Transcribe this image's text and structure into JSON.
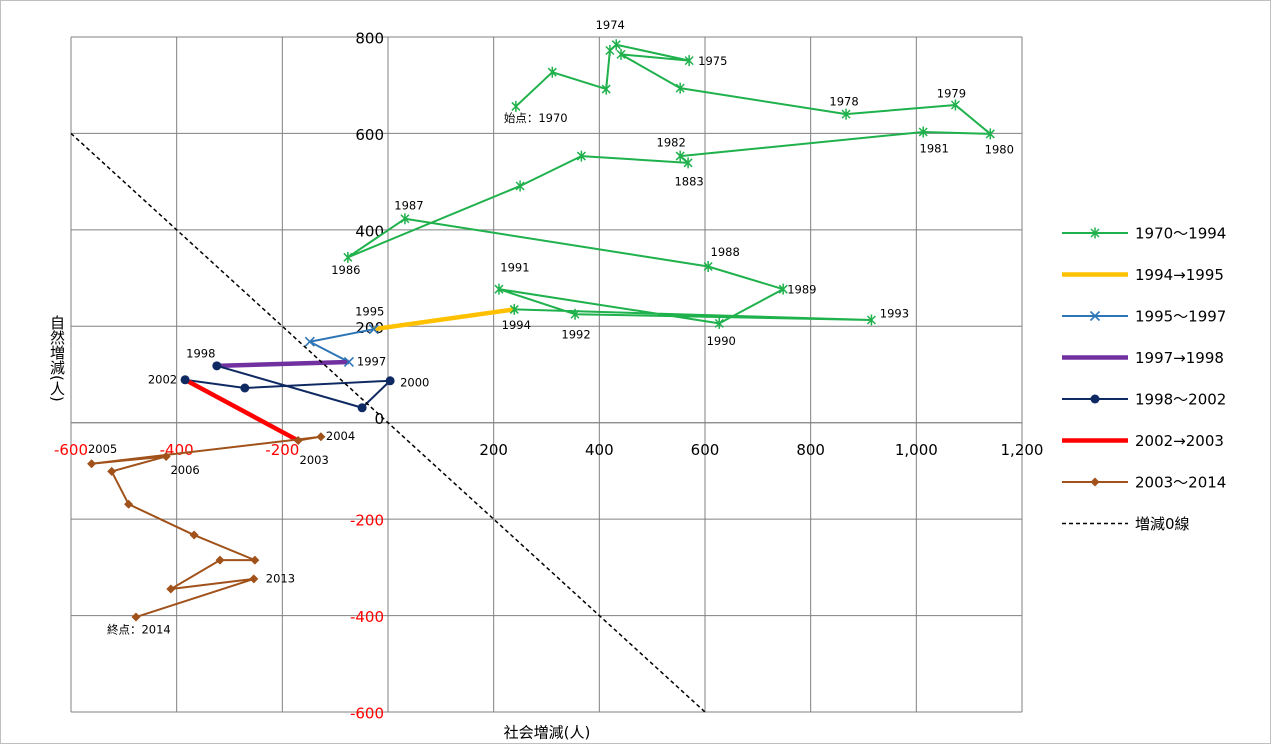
{
  "chart_data": {
    "type": "scatter-line",
    "x_label": "社会増減(人)",
    "y_label": "自然増減(人)",
    "xlim": [
      -600,
      1200
    ],
    "ylim": [
      -600,
      800
    ],
    "xticks": [
      -600,
      -400,
      -200,
      200,
      400,
      600,
      800,
      {
        "value": 1000,
        "label": "1,000"
      },
      {
        "value": 1200,
        "label": "1,200"
      }
    ],
    "yticks": [
      -600,
      -400,
      -200,
      0,
      200,
      400,
      600,
      800
    ],
    "negative_tick_color": "#ff0000",
    "grid": true,
    "legend": "right",
    "series": [
      {
        "name": "1970〜1994",
        "color": "#1fb14c",
        "marker": "star",
        "width": 2,
        "x": [
          242,
          311,
          413,
          420,
          432,
          570,
          441,
          553,
          867,
          1074,
          1140,
          1013,
          553,
          568,
          366,
          250,
          -76,
          32,
          606,
          748,
          627,
          210,
          354,
          915,
          239
        ],
        "values": [
          656,
          727,
          692,
          772,
          784,
          751,
          764,
          694,
          640,
          659,
          599,
          603,
          553,
          539,
          553,
          491,
          343,
          423,
          324,
          277,
          206,
          277,
          225,
          213,
          235
        ],
        "labels": [
          "始点：1970",
          null,
          null,
          null,
          "1974",
          "1975",
          null,
          null,
          "1978",
          "1979",
          "1980",
          "1981",
          "1982",
          "1883",
          null,
          null,
          "1986",
          "1987",
          "1988",
          "1989",
          "1990",
          "1991",
          "1992",
          "1993",
          "1994"
        ]
      },
      {
        "name": "1994→1995",
        "color": "#ffc000",
        "marker": "none",
        "width": 4.5,
        "x": [
          239,
          -27
        ],
        "values": [
          235,
          194
        ]
      },
      {
        "name": "1995〜1997",
        "color": "#2e75b6",
        "marker": "x",
        "width": 2,
        "x": [
          -27,
          -148,
          -74
        ],
        "values": [
          194,
          168,
          126
        ],
        "labels": [
          "1995",
          null,
          "1997"
        ]
      },
      {
        "name": "1997→1998",
        "color": "#7030a0",
        "marker": "none",
        "width": 4.5,
        "x": [
          -74,
          -324
        ],
        "values": [
          126,
          118
        ]
      },
      {
        "name": "1998〜2002",
        "color": "#0f2a63",
        "marker": "circle",
        "width": 2,
        "x": [
          -324,
          -49,
          4,
          -271,
          -384
        ],
        "values": [
          118,
          31,
          87,
          72,
          89
        ],
        "labels": [
          "1998",
          null,
          "2000",
          null,
          "2002"
        ]
      },
      {
        "name": "2002→2003",
        "color": "#ff0000",
        "marker": "none",
        "width": 4.5,
        "x": [
          -384,
          -170
        ],
        "values": [
          89,
          -37
        ]
      },
      {
        "name": "2003〜2014",
        "color": "#a0521a",
        "marker": "diamond",
        "width": 2,
        "x": [
          -170,
          -127,
          -561,
          -420,
          -523,
          -491,
          -367,
          -252,
          -318,
          -411,
          -254,
          -477
        ],
        "values": [
          -37,
          -29,
          -85,
          -70,
          -101,
          -169,
          -233,
          -285,
          -285,
          -345,
          -324,
          -403
        ],
        "labels": [
          "2003",
          "2004",
          "2005",
          "2006",
          null,
          null,
          null,
          null,
          null,
          null,
          "2013",
          "終点：2014"
        ]
      },
      {
        "name": "増減0線",
        "color": "#000000",
        "marker": "none",
        "width": 1.5,
        "dash": true,
        "x": [
          -600,
          600
        ],
        "values": [
          600,
          -600
        ]
      }
    ]
  }
}
